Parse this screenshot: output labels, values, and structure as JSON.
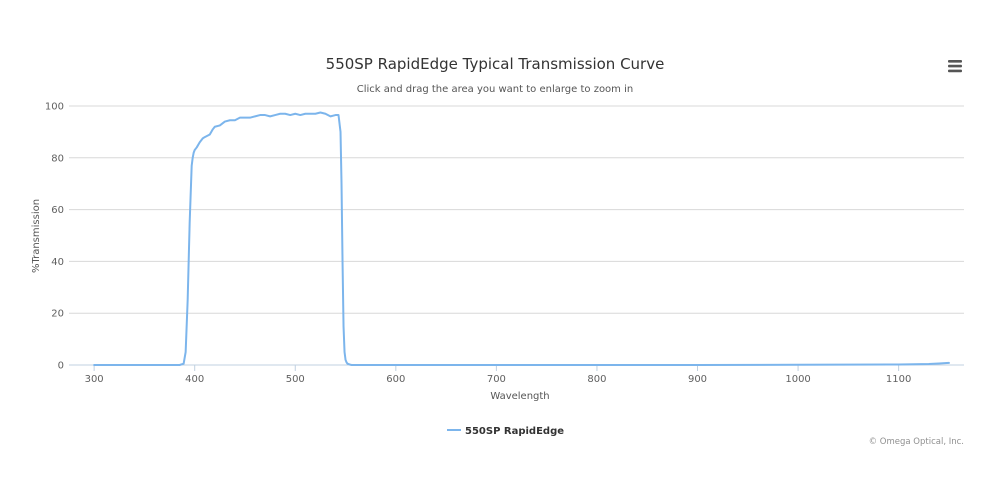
{
  "chart_data": {
    "type": "line",
    "title": "550SP RapidEdge Typical Transmission Curve",
    "subtitle": "Click and drag the area you want to enlarge to zoom in",
    "xlabel": "Wavelength",
    "ylabel": "%Transmission",
    "xlim": [
      275,
      1165
    ],
    "ylim": [
      0,
      100
    ],
    "x_ticks": [
      300,
      400,
      500,
      600,
      700,
      800,
      900,
      1000,
      1100
    ],
    "y_ticks": [
      0,
      20,
      40,
      60,
      80,
      100
    ],
    "grid": true,
    "legend_position": "bottom-center",
    "series": [
      {
        "name": "550SP RapidEdge",
        "color": "#7cb5ec",
        "x": [
          300,
          350,
          385,
          389,
          391,
          393,
          395,
          397,
          398,
          399,
          400,
          402,
          405,
          408,
          410,
          415,
          418,
          420,
          425,
          430,
          435,
          440,
          445,
          450,
          455,
          460,
          465,
          470,
          475,
          480,
          485,
          490,
          495,
          500,
          505,
          510,
          515,
          520,
          525,
          530,
          535,
          540,
          543,
          545,
          546,
          547,
          548,
          549,
          550,
          551,
          552,
          554,
          556,
          560,
          600,
          700,
          800,
          900,
          1000,
          1100,
          1130,
          1140,
          1150
        ],
        "y": [
          0,
          0,
          0,
          0.5,
          5,
          25,
          55,
          77,
          80,
          82,
          83,
          84,
          86,
          87.5,
          88,
          89,
          91,
          92,
          92.5,
          94,
          94.5,
          94.5,
          95.5,
          95.5,
          95.5,
          96,
          96.5,
          96.5,
          96,
          96.5,
          97,
          97,
          96.5,
          97,
          96.5,
          97,
          97,
          97,
          97.5,
          97,
          96,
          96.5,
          96.5,
          90,
          70,
          40,
          15,
          5,
          2,
          1,
          0.5,
          0.2,
          0,
          0,
          0,
          0,
          0,
          0,
          0.1,
          0.2,
          0.4,
          0.6,
          0.8
        ]
      }
    ]
  },
  "credits": "© Omega Optical, Inc.",
  "menu": {
    "icon": "hamburger-menu-icon"
  }
}
